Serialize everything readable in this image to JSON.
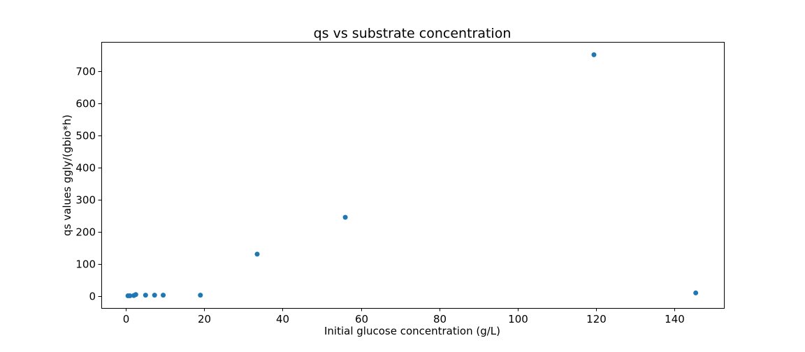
{
  "chart_data": {
    "type": "scatter",
    "title": "qs vs substrate concentration",
    "xlabel": "Initial glucose concentration (g/L)",
    "ylabel": "qs values ggly/(gbio*h)",
    "xlim": [
      -6.3,
      152.7
    ],
    "ylim": [
      -38,
      792
    ],
    "x_ticks": [
      0,
      20,
      40,
      60,
      80,
      100,
      120,
      140
    ],
    "y_ticks": [
      0,
      100,
      200,
      300,
      400,
      500,
      600,
      700
    ],
    "grid": false,
    "legend": "none",
    "marker_color": "#1f77b4",
    "points": [
      {
        "x": 0.5,
        "y": 0
      },
      {
        "x": 1.0,
        "y": 0
      },
      {
        "x": 2.0,
        "y": 1
      },
      {
        "x": 2.5,
        "y": 4
      },
      {
        "x": 5.0,
        "y": 2
      },
      {
        "x": 7.3,
        "y": 2
      },
      {
        "x": 9.5,
        "y": 2
      },
      {
        "x": 19.0,
        "y": 2
      },
      {
        "x": 33.5,
        "y": 130
      },
      {
        "x": 56.0,
        "y": 245
      },
      {
        "x": 119.5,
        "y": 752
      },
      {
        "x": 145.5,
        "y": 9
      }
    ]
  }
}
